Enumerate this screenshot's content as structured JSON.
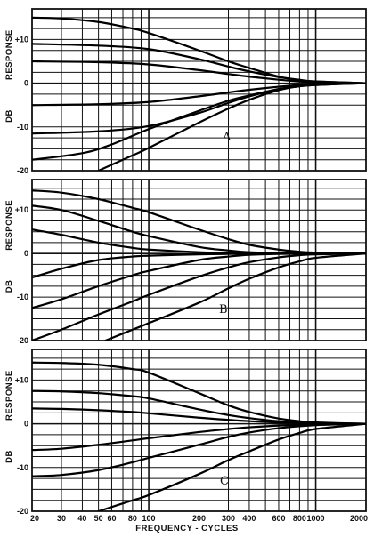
{
  "chart_data": [
    {
      "type": "line",
      "panel_label": "A",
      "ylabel_left": "RESPONSE",
      "ylabel_left2": "DB",
      "xscale": "log",
      "xlim": [
        20,
        2000
      ],
      "ylim": [
        -20,
        17
      ],
      "yticks": [
        {
          "value": 10,
          "label": "+10"
        },
        {
          "value": 0,
          "label": "0"
        },
        {
          "value": -10,
          "label": "-10"
        },
        {
          "value": -20,
          "label": "-20"
        }
      ],
      "grid": true,
      "series": [
        {
          "x": [
            20,
            30,
            50,
            80,
            100,
            200,
            300,
            400,
            600,
            800,
            1000,
            2000
          ],
          "y": [
            15,
            14.8,
            14,
            12.5,
            11.5,
            7.5,
            5,
            3.5,
            1.5,
            0.7,
            0.4,
            0
          ]
        },
        {
          "x": [
            20,
            50,
            100,
            200,
            300,
            400,
            600,
            800,
            1000,
            2000
          ],
          "y": [
            9,
            8.6,
            7.8,
            5.5,
            3.8,
            2.7,
            1.4,
            0.8,
            0.4,
            0
          ]
        },
        {
          "x": [
            20,
            50,
            100,
            200,
            300,
            400,
            600,
            800,
            1000,
            2000
          ],
          "y": [
            5,
            4.8,
            4.3,
            3,
            2.1,
            1.5,
            0.8,
            0.4,
            0.2,
            0
          ]
        },
        {
          "x": [
            20,
            50,
            100,
            200,
            300,
            400,
            600,
            800,
            1000,
            2000
          ],
          "y": [
            -5,
            -4.8,
            -4.3,
            -3,
            -2.1,
            -1.5,
            -0.8,
            -0.4,
            -0.2,
            0
          ]
        },
        {
          "x": [
            20,
            50,
            100,
            200,
            300,
            400,
            600,
            800,
            1000,
            2000
          ],
          "y": [
            -11.5,
            -11,
            -9.8,
            -6.8,
            -4.5,
            -3,
            -1.4,
            -0.7,
            -0.4,
            0
          ]
        },
        {
          "x": [
            20,
            40,
            60,
            100,
            200,
            300,
            400,
            600,
            800,
            1000,
            2000
          ],
          "y": [
            -17.5,
            -16,
            -14,
            -10.5,
            -6.3,
            -4,
            -2.8,
            -1.3,
            -0.7,
            -0.4,
            0
          ]
        },
        {
          "x": [
            50,
            80,
            100,
            200,
            300,
            400,
            600,
            800,
            1000,
            2000
          ],
          "y": [
            -20,
            -16.5,
            -14.8,
            -9,
            -5.8,
            -3.8,
            -1.6,
            -0.7,
            -0.3,
            0
          ]
        }
      ]
    },
    {
      "type": "line",
      "panel_label": "B",
      "ylabel_left": "RESPONSE",
      "ylabel_left2": "DB",
      "xscale": "log",
      "xlim": [
        20,
        2000
      ],
      "ylim": [
        -20,
        17
      ],
      "yticks": [
        {
          "value": 10,
          "label": "+10"
        },
        {
          "value": 0,
          "label": "0"
        },
        {
          "value": -10,
          "label": "-10"
        },
        {
          "value": -20,
          "label": "-20"
        }
      ],
      "grid": true,
      "series": [
        {
          "x": [
            20,
            30,
            50,
            80,
            100,
            200,
            300,
            400,
            600,
            800,
            1000,
            2000
          ],
          "y": [
            14.5,
            14,
            12.5,
            10.5,
            9.5,
            5.5,
            3.3,
            2,
            0.9,
            0.4,
            0.2,
            0
          ]
        },
        {
          "x": [
            20,
            30,
            50,
            80,
            100,
            200,
            300,
            400,
            600,
            1000,
            2000
          ],
          "y": [
            11,
            10,
            7.5,
            5,
            4,
            1.5,
            0.7,
            0.3,
            0.1,
            0,
            0
          ]
        },
        {
          "x": [
            20,
            30,
            50,
            80,
            100,
            200,
            300,
            600,
            1000,
            2000
          ],
          "y": [
            5.5,
            4.3,
            2.5,
            1.3,
            0.9,
            0.3,
            0.1,
            0,
            0,
            0
          ]
        },
        {
          "x": [
            20,
            30,
            50,
            80,
            100,
            200,
            300,
            600,
            1000,
            2000
          ],
          "y": [
            -5.5,
            -3.5,
            -1.5,
            -0.7,
            -0.5,
            -0.2,
            -0.1,
            0,
            0,
            0
          ]
        },
        {
          "x": [
            20,
            30,
            50,
            80,
            100,
            200,
            300,
            400,
            600,
            1000,
            2000
          ],
          "y": [
            -12.5,
            -10.5,
            -7.5,
            -5,
            -4,
            -1.5,
            -0.7,
            -0.3,
            -0.1,
            0,
            0
          ]
        },
        {
          "x": [
            20,
            30,
            50,
            80,
            100,
            200,
            300,
            400,
            600,
            800,
            1000,
            2000
          ],
          "y": [
            -20,
            -17.5,
            -14,
            -11,
            -9.5,
            -5.3,
            -3.2,
            -2,
            -0.9,
            -0.4,
            -0.2,
            0
          ]
        },
        {
          "x": [
            55,
            80,
            100,
            200,
            300,
            400,
            600,
            800,
            1000,
            2000
          ],
          "y": [
            -20,
            -17.5,
            -16,
            -11.3,
            -8,
            -5.8,
            -3.2,
            -1.8,
            -1,
            0
          ]
        }
      ]
    },
    {
      "type": "line",
      "panel_label": "C",
      "ylabel_left": "RESPONSE",
      "ylabel_left2": "DB",
      "xlabel": "FREQUENCY  -  CYCLES",
      "xscale": "log",
      "xlim": [
        20,
        2000
      ],
      "ylim": [
        -20,
        17
      ],
      "xticks": [
        {
          "value": 20,
          "label": "20"
        },
        {
          "value": 30,
          "label": "30"
        },
        {
          "value": 40,
          "label": "40"
        },
        {
          "value": 50,
          "label": "50"
        },
        {
          "value": 60,
          "label": "60"
        },
        {
          "value": 80,
          "label": "80"
        },
        {
          "value": 100,
          "label": "100"
        },
        {
          "value": 200,
          "label": "200"
        },
        {
          "value": 300,
          "label": "300"
        },
        {
          "value": 400,
          "label": "400"
        },
        {
          "value": 600,
          "label": "600"
        },
        {
          "value": 800,
          "label": "800"
        },
        {
          "value": 1000,
          "label": "1000"
        },
        {
          "value": 2000,
          "label": "2000"
        }
      ],
      "yticks": [
        {
          "value": 10,
          "label": "+10"
        },
        {
          "value": 0,
          "label": "0"
        },
        {
          "value": -10,
          "label": "-10"
        },
        {
          "value": -20,
          "label": "-20"
        }
      ],
      "grid": true,
      "series": [
        {
          "x": [
            20,
            30,
            50,
            80,
            100,
            200,
            300,
            400,
            600,
            800,
            1000,
            2000
          ],
          "y": [
            14,
            13.9,
            13.5,
            12.5,
            11.7,
            7,
            4.2,
            2.7,
            1.2,
            0.6,
            0.3,
            0
          ]
        },
        {
          "x": [
            20,
            30,
            50,
            80,
            100,
            200,
            300,
            400,
            600,
            1000,
            2000
          ],
          "y": [
            7.5,
            7.4,
            7,
            6.3,
            5.8,
            3.3,
            2,
            1.3,
            0.6,
            0.2,
            0
          ]
        },
        {
          "x": [
            20,
            30,
            50,
            80,
            100,
            200,
            300,
            400,
            600,
            1000,
            2000
          ],
          "y": [
            3.5,
            3.4,
            3.1,
            2.7,
            2.4,
            1.4,
            0.9,
            0.6,
            0.3,
            0.1,
            0
          ]
        },
        {
          "x": [
            20,
            30,
            50,
            80,
            100,
            200,
            300,
            400,
            600,
            1000,
            2000
          ],
          "y": [
            -6,
            -5.7,
            -4.8,
            -3.8,
            -3.3,
            -1.9,
            -1.2,
            -0.8,
            -0.4,
            -0.1,
            0
          ]
        },
        {
          "x": [
            20,
            30,
            50,
            80,
            100,
            200,
            300,
            400,
            600,
            1000,
            2000
          ],
          "y": [
            -12,
            -11.7,
            -10.6,
            -8.8,
            -7.8,
            -4.8,
            -3,
            -2,
            -1,
            -0.3,
            0
          ]
        },
        {
          "x": [
            50,
            80,
            100,
            200,
            300,
            400,
            600,
            800,
            1000,
            2000
          ],
          "y": [
            -20,
            -17.5,
            -16.3,
            -11.5,
            -8.3,
            -6.3,
            -3.6,
            -2.1,
            -1.2,
            0
          ]
        }
      ]
    }
  ]
}
